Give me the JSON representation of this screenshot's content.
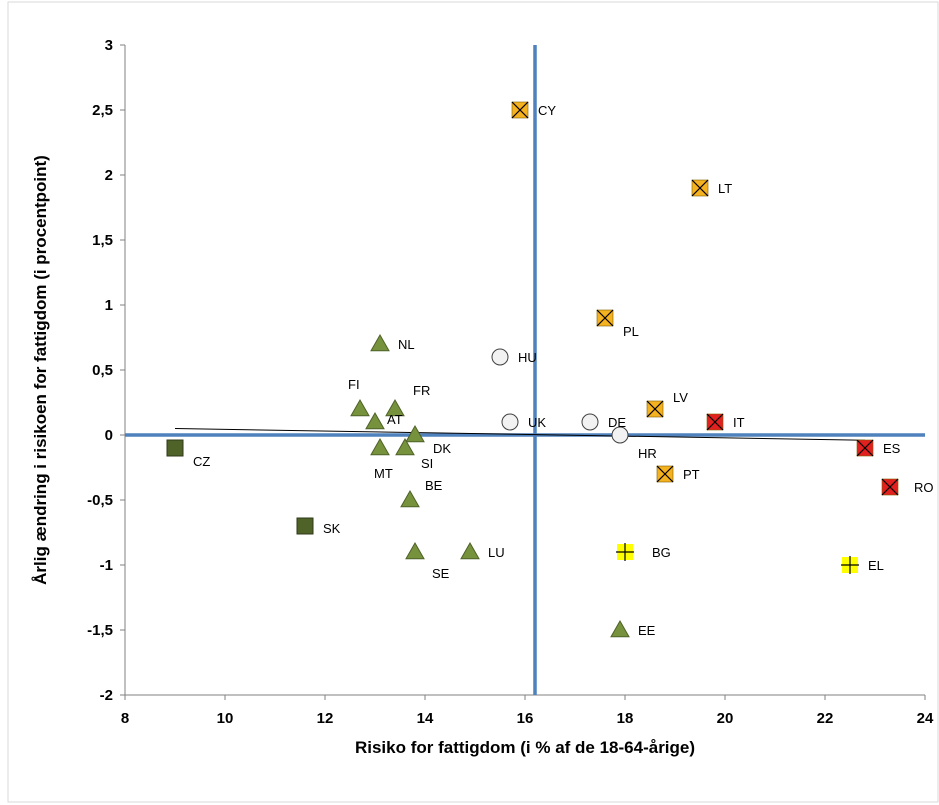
{
  "chart_data": {
    "type": "scatter",
    "xlabel": "Risiko for fattigdom (i % af de 18-64-årige)",
    "ylabel": "Årlig ændring i risikoen for fattigdom (i procentpoint)",
    "xlim": [
      8,
      24
    ],
    "ylim": [
      -2,
      3
    ],
    "x_ticks": [
      "8",
      "10",
      "12",
      "14",
      "16",
      "18",
      "20",
      "22",
      "24"
    ],
    "y_ticks": [
      "3",
      "2,5",
      "2",
      "1,5",
      "1",
      "0,5",
      "0",
      "-0,5",
      "-1",
      "-1,5",
      "-2"
    ],
    "reference_lines": {
      "vertical_x": 16.2,
      "horizontal_y": 0
    },
    "trendline": {
      "x": [
        9.0,
        22.8
      ],
      "y": [
        0.05,
        -0.04
      ]
    },
    "grid": false,
    "marker_styles": {
      "triangle": {
        "fill": "#76923c",
        "stroke": "#4f6228"
      },
      "square": {
        "fill": "#4f6228",
        "stroke": "#2f3a18"
      },
      "circle": {
        "fill": "#f2f2f2",
        "stroke": "#404040"
      },
      "xsquare": {
        "fill": "#f4b120",
        "stroke": "#000000"
      },
      "xsquare_red": {
        "fill": "#e32020",
        "stroke": "#000000"
      },
      "plus": {
        "fill": "#ffff00",
        "stroke": "#000000"
      }
    },
    "points": [
      {
        "code": "CZ",
        "x": 9.0,
        "y": -0.1,
        "marker": "square"
      },
      {
        "code": "SK",
        "x": 11.6,
        "y": -0.7,
        "marker": "square"
      },
      {
        "code": "NL",
        "x": 13.1,
        "y": 0.7,
        "marker": "triangle"
      },
      {
        "code": "FI",
        "x": 12.7,
        "y": 0.2,
        "marker": "triangle"
      },
      {
        "code": "AT",
        "x": 13.0,
        "y": 0.1,
        "marker": "triangle"
      },
      {
        "code": "FR",
        "x": 13.4,
        "y": 0.2,
        "marker": "triangle"
      },
      {
        "code": "DK",
        "x": 13.8,
        "y": 0.0,
        "marker": "triangle"
      },
      {
        "code": "MT",
        "x": 13.1,
        "y": -0.1,
        "marker": "triangle"
      },
      {
        "code": "SI",
        "x": 13.6,
        "y": -0.1,
        "marker": "triangle"
      },
      {
        "code": "BE",
        "x": 13.7,
        "y": -0.5,
        "marker": "triangle"
      },
      {
        "code": "SE",
        "x": 13.8,
        "y": -0.9,
        "marker": "triangle"
      },
      {
        "code": "LU",
        "x": 14.9,
        "y": -0.9,
        "marker": "triangle"
      },
      {
        "code": "EE",
        "x": 17.9,
        "y": -1.5,
        "marker": "triangle"
      },
      {
        "code": "HU",
        "x": 15.5,
        "y": 0.6,
        "marker": "circle"
      },
      {
        "code": "UK",
        "x": 15.7,
        "y": 0.1,
        "marker": "circle"
      },
      {
        "code": "DE",
        "x": 17.3,
        "y": 0.1,
        "marker": "circle"
      },
      {
        "code": "HR",
        "x": 17.9,
        "y": 0.0,
        "marker": "circle"
      },
      {
        "code": "CY",
        "x": 15.9,
        "y": 2.5,
        "marker": "xsquare"
      },
      {
        "code": "LT",
        "x": 19.5,
        "y": 1.9,
        "marker": "xsquare"
      },
      {
        "code": "PL",
        "x": 17.6,
        "y": 0.9,
        "marker": "xsquare"
      },
      {
        "code": "LV",
        "x": 18.6,
        "y": 0.2,
        "marker": "xsquare"
      },
      {
        "code": "PT",
        "x": 18.8,
        "y": -0.3,
        "marker": "xsquare"
      },
      {
        "code": "IT",
        "x": 19.8,
        "y": 0.1,
        "marker": "xsquare_red"
      },
      {
        "code": "ES",
        "x": 22.8,
        "y": -0.1,
        "marker": "xsquare_red"
      },
      {
        "code": "RO",
        "x": 23.3,
        "y": -0.4,
        "marker": "xsquare_red"
      },
      {
        "code": "BG",
        "x": 18.0,
        "y": -0.9,
        "marker": "plus"
      },
      {
        "code": "EL",
        "x": 22.5,
        "y": -1.0,
        "marker": "plus"
      }
    ]
  }
}
